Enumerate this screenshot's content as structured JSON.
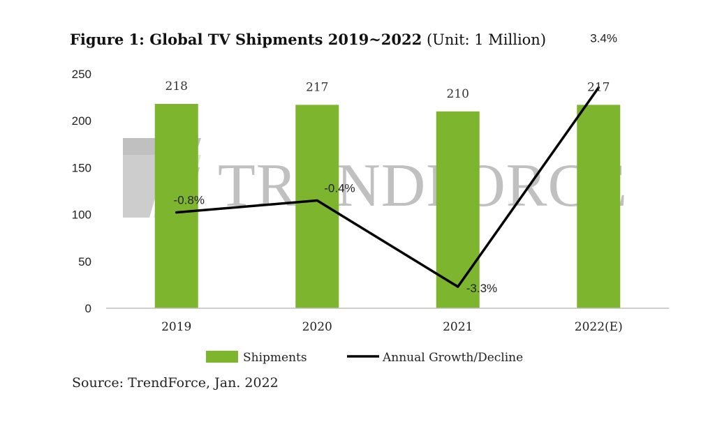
{
  "title": {
    "bold_part": "Figure 1: Global TV Shipments 2019~2022",
    "unit_part": "(Unit: 1 Million)"
  },
  "watermark": "TRENDFORCE",
  "source": "Source: TrendForce, Jan. 2022",
  "colors": {
    "bars": "#7db52f",
    "line": "#000000",
    "axis": "#bfbfbf"
  },
  "chart_data": {
    "type": "bar+line",
    "title": "Figure 1: Global TV Shipments 2019~2022 (Unit: 1 Million)",
    "categories": [
      "2019",
      "2020",
      "2021",
      "2022(E)"
    ],
    "ylim": [
      0,
      250
    ],
    "yticks": [
      0,
      50,
      100,
      150,
      200,
      250
    ],
    "grid": false,
    "legend_position": "bottom",
    "series": [
      {
        "name": "Shipments",
        "type": "bar",
        "values": [
          218,
          217,
          210,
          217
        ],
        "labels": [
          "218",
          "217",
          "210",
          "217"
        ]
      },
      {
        "name": "Annual Growth/Decline",
        "type": "line",
        "values": [
          -0.8,
          -0.4,
          -3.3,
          3.4
        ],
        "labels": [
          "-0.8%",
          "-0.4%",
          "-3.3%",
          "3.4%"
        ]
      }
    ]
  }
}
